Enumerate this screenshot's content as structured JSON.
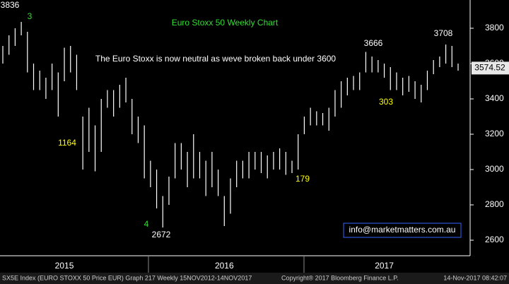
{
  "chart_data": {
    "type": "ohlc",
    "title": "Euro Stoxx 50 Weekly Chart",
    "subtitle": "The Euro Stoxx is now neutral as weve broken back under 3600",
    "categories": [
      null,
      null,
      null,
      null,
      null,
      null,
      null,
      null,
      null,
      null,
      "2015",
      null,
      null,
      null,
      null,
      null,
      null,
      null,
      null,
      null,
      null,
      null,
      null,
      null,
      null,
      null,
      null,
      null,
      null,
      null,
      null,
      null,
      null,
      null,
      null,
      null,
      "2016",
      null,
      null,
      null,
      null,
      null,
      null,
      null,
      null,
      null,
      null,
      null,
      null,
      null,
      null,
      null,
      null,
      null,
      null,
      null,
      null,
      null,
      null,
      null,
      null,
      null,
      "2017",
      null,
      null,
      null,
      null,
      null,
      null,
      null,
      null,
      null,
      null,
      null,
      null
    ],
    "low": [
      3600,
      3650,
      3700,
      3760,
      3550,
      3450,
      3450,
      3400,
      3450,
      3300,
      3500,
      3550,
      3450,
      3000,
      3100,
      2990,
      3100,
      3350,
      3300,
      3350,
      3380,
      3200,
      3150,
      2950,
      2900,
      2780,
      2672,
      2800,
      2950,
      3000,
      2900,
      2950,
      2950,
      2850,
      2900,
      2850,
      2680,
      2750,
      2900,
      2950,
      2950,
      3000,
      2980,
      2950,
      3000,
      3000,
      2970,
      2980,
      3000,
      3200,
      3250,
      3250,
      3250,
      3220,
      3300,
      3350,
      3420,
      3450,
      3450,
      3550,
      3550,
      3550,
      3520,
      3450,
      3450,
      3420,
      3440,
      3400,
      3380,
      3450,
      3540,
      3580,
      3600,
      3580,
      3560
    ],
    "high": [
      3700,
      3760,
      3800,
      3836,
      3780,
      3600,
      3560,
      3520,
      3600,
      3550,
      3690,
      3700,
      3650,
      3300,
      3350,
      3250,
      3400,
      3450,
      3450,
      3480,
      3520,
      3400,
      3300,
      3250,
      3050,
      3000,
      2850,
      2960,
      3150,
      3150,
      3100,
      3200,
      3100,
      3050,
      3100,
      3000,
      2850,
      2950,
      3050,
      3050,
      3100,
      3100,
      3100,
      3080,
      3100,
      3120,
      3100,
      3050,
      3200,
      3300,
      3350,
      3330,
      3320,
      3350,
      3450,
      3500,
      3520,
      3530,
      3550,
      3666,
      3640,
      3620,
      3600,
      3580,
      3550,
      3520,
      3530,
      3500,
      3480,
      3560,
      3620,
      3640,
      3708,
      3700,
      3600
    ],
    "color": "#ffffff",
    "ylim": [
      2512,
      3960
    ],
    "yticks": [
      2600,
      2800,
      3000,
      3200,
      3400,
      3600,
      3800
    ],
    "last_value": 3574.52,
    "annotations": [
      {
        "text": "3836",
        "color": "#ffffff"
      },
      {
        "text": "3",
        "color": "#33dd33"
      },
      {
        "text": "1164",
        "color": "#ffff00"
      },
      {
        "text": "4",
        "color": "#33dd33"
      },
      {
        "text": "2672",
        "color": "#ffffff"
      },
      {
        "text": "179",
        "color": "#ffff00"
      },
      {
        "text": "3666",
        "color": "#ffffff"
      },
      {
        "text": "303",
        "color": "#ffff00"
      },
      {
        "text": "3708",
        "color": "#ffffff"
      }
    ],
    "contact": "info@marketmatters.com.au",
    "footer": [
      "SX5E Index (EURO STOXX 50 Price EUR) Graph 217  Weekly 15NOV2012-14NOV2017",
      "Copyright® 2017 Bloomberg Finance L.P.",
      "14-Nov-2017 08:42:07"
    ]
  }
}
